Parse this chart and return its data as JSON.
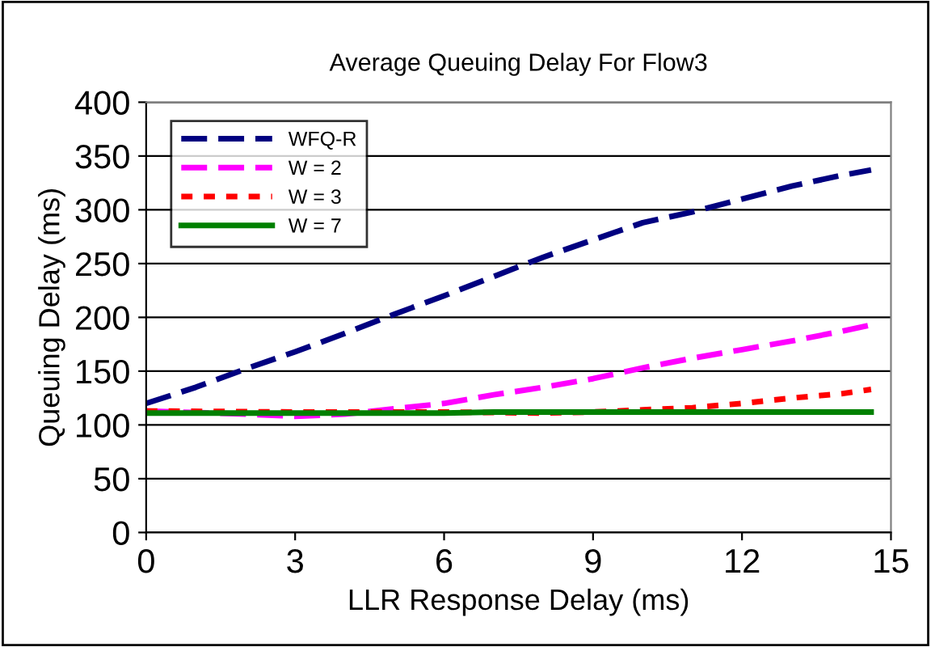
{
  "chart_data": {
    "type": "line",
    "title": "Average Queuing Delay For Flow3",
    "xlabel": "LLR Response Delay (ms)",
    "ylabel": "Queuing Delay (ms)",
    "xlim": [
      0,
      15
    ],
    "xticks": [
      0,
      3,
      6,
      9,
      12,
      15
    ],
    "ylim": [
      0,
      400
    ],
    "yticks": [
      0,
      50,
      100,
      150,
      200,
      250,
      300,
      350,
      400
    ],
    "grid": "y",
    "legend": "top left",
    "marker": "none",
    "series": [
      {
        "name": "WFQ-R",
        "color": "#000080",
        "line_style": "dashed",
        "x": [
          0,
          1,
          2,
          3,
          4,
          5,
          6,
          7,
          8,
          9,
          10,
          11,
          12,
          13,
          14,
          14.6
        ],
        "values": [
          120,
          135,
          152,
          168,
          185,
          203,
          220,
          238,
          256,
          272,
          288,
          298,
          310,
          322,
          332,
          337
        ]
      },
      {
        "name": "W = 2",
        "color": "#ff00ff",
        "line_style": "dashed",
        "x": [
          0,
          2,
          3,
          4,
          5,
          6,
          7,
          8,
          9,
          10,
          11,
          12,
          13,
          14,
          14.6
        ],
        "values": [
          113,
          110,
          108,
          110,
          115,
          120,
          128,
          135,
          143,
          153,
          162,
          170,
          178,
          187,
          193
        ]
      },
      {
        "name": "W = 3",
        "color": "#ff0000",
        "line_style": "dotted",
        "x": [
          0,
          3,
          6,
          8,
          9,
          10,
          11,
          12,
          13,
          14,
          14.6
        ],
        "values": [
          113,
          112,
          112,
          111,
          112,
          114,
          116,
          120,
          125,
          129,
          133
        ]
      },
      {
        "name": "W = 7",
        "color": "#008000",
        "line_style": "solid",
        "x": [
          0,
          6,
          7,
          14.6
        ],
        "values": [
          111,
          111,
          112,
          112
        ]
      }
    ]
  }
}
